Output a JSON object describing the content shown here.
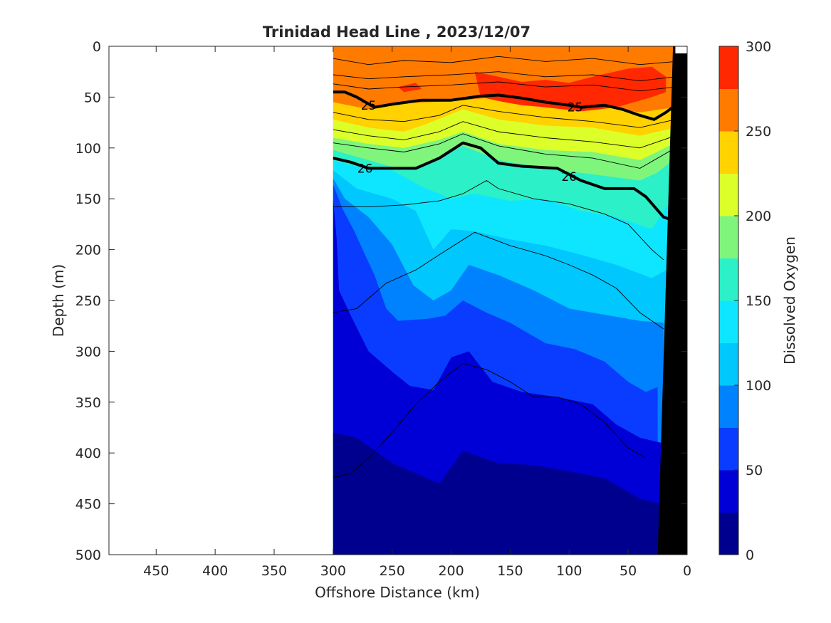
{
  "chart_data": {
    "type": "heatmap",
    "title": "Trinidad Head Line , 2023/12/07",
    "xlabel": "Offshore Distance (km)",
    "ylabel": "Depth (m)",
    "colorbar_label": "Dissolved Oxygen",
    "xlim": [
      490,
      0
    ],
    "ylim": [
      0,
      500
    ],
    "x_reversed": true,
    "y_reversed": true,
    "xticks": [
      "450",
      "400",
      "350",
      "300",
      "250",
      "200",
      "150",
      "100",
      "50",
      "0"
    ],
    "xtick_values": [
      450,
      400,
      350,
      300,
      250,
      200,
      150,
      100,
      50,
      0
    ],
    "yticks": [
      "0",
      "50",
      "100",
      "150",
      "200",
      "250",
      "300",
      "350",
      "400",
      "450",
      "500"
    ],
    "ytick_values": [
      0,
      50,
      100,
      150,
      200,
      250,
      300,
      350,
      400,
      450,
      500
    ],
    "colorbar_ticks": [
      "0",
      "50",
      "100",
      "150",
      "200",
      "250",
      "300"
    ],
    "colorbar_tick_values": [
      0,
      50,
      100,
      150,
      200,
      250,
      300
    ],
    "colorbar_levels": [
      0,
      25,
      50,
      75,
      100,
      125,
      150,
      175,
      200,
      225,
      250,
      275,
      300
    ],
    "colormap": [
      "#00008f",
      "#0000d6",
      "#0a3cff",
      "#0082ff",
      "#00c8ff",
      "#0ee6ff",
      "#2bf0c8",
      "#7ff57c",
      "#dcff2a",
      "#ffd200",
      "#ff7b00",
      "#ff2800",
      "#d50000"
    ],
    "data_extent_km": [
      300,
      10
    ],
    "oxygen_layers": [
      {
        "level": 250,
        "boundary": [
          [
            300,
            55
          ],
          [
            270,
            62
          ],
          [
            240,
            56
          ],
          [
            200,
            54
          ],
          [
            160,
            50
          ],
          [
            120,
            57
          ],
          [
            80,
            58
          ],
          [
            40,
            65
          ],
          [
            10,
            60
          ]
        ]
      },
      {
        "level": 225,
        "boundary": [
          [
            300,
            72
          ],
          [
            270,
            80
          ],
          [
            240,
            84
          ],
          [
            220,
            76
          ],
          [
            190,
            62
          ],
          [
            160,
            72
          ],
          [
            120,
            78
          ],
          [
            80,
            80
          ],
          [
            40,
            88
          ],
          [
            10,
            80
          ]
        ]
      },
      {
        "level": 200,
        "boundary": [
          [
            300,
            90
          ],
          [
            270,
            96
          ],
          [
            240,
            100
          ],
          [
            210,
            92
          ],
          [
            190,
            84
          ],
          [
            160,
            96
          ],
          [
            120,
            102
          ],
          [
            80,
            104
          ],
          [
            40,
            112
          ],
          [
            10,
            95
          ]
        ]
      },
      {
        "level": 175,
        "boundary": [
          [
            300,
            102
          ],
          [
            270,
            112
          ],
          [
            240,
            122
          ],
          [
            210,
            110
          ],
          [
            190,
            98
          ],
          [
            160,
            112
          ],
          [
            120,
            120
          ],
          [
            80,
            126
          ],
          [
            40,
            132
          ],
          [
            25,
            124
          ],
          [
            10,
            110
          ]
        ]
      },
      {
        "level": 150,
        "boundary": [
          [
            300,
            112
          ],
          [
            280,
            118
          ],
          [
            250,
            122
          ],
          [
            225,
            138
          ],
          [
            200,
            150
          ],
          [
            180,
            145
          ],
          [
            150,
            152
          ],
          [
            120,
            150
          ],
          [
            90,
            162
          ],
          [
            60,
            168
          ],
          [
            30,
            180
          ],
          [
            10,
            145
          ]
        ]
      },
      {
        "level": 125,
        "boundary": [
          [
            300,
            122
          ],
          [
            280,
            140
          ],
          [
            250,
            150
          ],
          [
            230,
            162
          ],
          [
            215,
            200
          ],
          [
            200,
            180
          ],
          [
            180,
            182
          ],
          [
            150,
            190
          ],
          [
            120,
            196
          ],
          [
            90,
            205
          ],
          [
            60,
            215
          ],
          [
            30,
            228
          ],
          [
            10,
            215
          ]
        ]
      },
      {
        "level": 100,
        "boundary": [
          [
            300,
            130
          ],
          [
            290,
            150
          ],
          [
            270,
            168
          ],
          [
            250,
            195
          ],
          [
            232,
            235
          ],
          [
            215,
            250
          ],
          [
            200,
            240
          ],
          [
            185,
            215
          ],
          [
            160,
            225
          ],
          [
            130,
            240
          ],
          [
            100,
            258
          ],
          [
            70,
            264
          ],
          [
            40,
            270
          ],
          [
            20,
            272
          ]
        ]
      },
      {
        "level": 75,
        "boundary": [
          [
            300,
            136
          ],
          [
            292,
            160
          ],
          [
            282,
            182
          ],
          [
            275,
            200
          ],
          [
            265,
            225
          ],
          [
            255,
            258
          ],
          [
            245,
            270
          ],
          [
            220,
            268
          ],
          [
            205,
            265
          ],
          [
            190,
            250
          ],
          [
            170,
            262
          ],
          [
            150,
            272
          ],
          [
            120,
            292
          ],
          [
            95,
            298
          ],
          [
            70,
            310
          ],
          [
            50,
            330
          ],
          [
            35,
            340
          ],
          [
            25,
            335
          ]
        ]
      },
      {
        "level": 50,
        "boundary": [
          [
            300,
            150
          ],
          [
            297,
            190
          ],
          [
            295,
            240
          ],
          [
            285,
            265
          ],
          [
            270,
            300
          ],
          [
            250,
            320
          ],
          [
            235,
            334
          ],
          [
            215,
            338
          ],
          [
            200,
            306
          ],
          [
            185,
            300
          ],
          [
            165,
            330
          ],
          [
            140,
            340
          ],
          [
            110,
            345
          ],
          [
            80,
            352
          ],
          [
            60,
            372
          ],
          [
            40,
            385
          ],
          [
            22,
            390
          ]
        ]
      },
      {
        "level": 25,
        "boundary": [
          [
            300,
            380
          ],
          [
            280,
            385
          ],
          [
            250,
            410
          ],
          [
            230,
            420
          ],
          [
            210,
            430
          ],
          [
            190,
            398
          ],
          [
            160,
            410
          ],
          [
            130,
            412
          ],
          [
            100,
            418
          ],
          [
            70,
            425
          ],
          [
            40,
            445
          ],
          [
            22,
            450
          ]
        ]
      }
    ],
    "red_patches": [
      {
        "level": 275,
        "outline": [
          [
            180,
            25
          ],
          [
            160,
            30
          ],
          [
            140,
            35
          ],
          [
            120,
            33
          ],
          [
            100,
            36
          ],
          [
            80,
            30
          ],
          [
            50,
            22
          ],
          [
            30,
            20
          ],
          [
            18,
            30
          ],
          [
            18,
            45
          ],
          [
            30,
            50
          ],
          [
            60,
            60
          ],
          [
            90,
            64
          ],
          [
            120,
            60
          ],
          [
            140,
            58
          ],
          [
            155,
            55
          ],
          [
            175,
            50
          ]
        ]
      },
      {
        "level": 275,
        "outline": [
          [
            245,
            40
          ],
          [
            230,
            36
          ],
          [
            225,
            42
          ],
          [
            240,
            45
          ]
        ]
      }
    ],
    "isopycnals": [
      {
        "value": 25,
        "points": [
          [
            300,
            45
          ],
          [
            290,
            45
          ],
          [
            280,
            50
          ],
          [
            265,
            60
          ],
          [
            250,
            57
          ],
          [
            225,
            53
          ],
          [
            200,
            53
          ],
          [
            175,
            49
          ],
          [
            160,
            48
          ],
          [
            140,
            51
          ],
          [
            120,
            55
          ],
          [
            100,
            58
          ],
          [
            90,
            60
          ],
          [
            70,
            58
          ],
          [
            55,
            62
          ],
          [
            40,
            68
          ],
          [
            28,
            72
          ],
          [
            18,
            65
          ],
          [
            10,
            58
          ]
        ],
        "labels": [
          [
            270,
            58
          ],
          [
            95,
            60
          ]
        ]
      },
      {
        "value": 26,
        "points": [
          [
            300,
            110
          ],
          [
            285,
            114
          ],
          [
            270,
            120
          ],
          [
            250,
            120
          ],
          [
            230,
            120
          ],
          [
            210,
            110
          ],
          [
            190,
            95
          ],
          [
            175,
            100
          ],
          [
            160,
            115
          ],
          [
            140,
            118
          ],
          [
            110,
            120
          ],
          [
            90,
            132
          ],
          [
            70,
            140
          ],
          [
            45,
            140
          ],
          [
            35,
            148
          ],
          [
            20,
            168
          ],
          [
            10,
            172
          ]
        ],
        "labels": [
          [
            273,
            120
          ],
          [
            100,
            128
          ]
        ]
      }
    ],
    "thin_contours": [
      [
        [
          300,
          12
        ],
        [
          270,
          18
        ],
        [
          240,
          14
        ],
        [
          200,
          16
        ],
        [
          160,
          10
        ],
        [
          120,
          15
        ],
        [
          80,
          12
        ],
        [
          40,
          18
        ],
        [
          10,
          15
        ]
      ],
      [
        [
          300,
          28
        ],
        [
          270,
          32
        ],
        [
          240,
          30
        ],
        [
          200,
          28
        ],
        [
          160,
          25
        ],
        [
          120,
          30
        ],
        [
          80,
          28
        ],
        [
          40,
          34
        ],
        [
          10,
          30
        ]
      ],
      [
        [
          300,
          37
        ],
        [
          270,
          42
        ],
        [
          240,
          40
        ],
        [
          200,
          38
        ],
        [
          160,
          35
        ],
        [
          120,
          40
        ],
        [
          80,
          38
        ],
        [
          40,
          44
        ],
        [
          10,
          40
        ]
      ],
      [
        [
          300,
          65
        ],
        [
          270,
          72
        ],
        [
          240,
          74
        ],
        [
          210,
          68
        ],
        [
          190,
          58
        ],
        [
          160,
          64
        ],
        [
          120,
          70
        ],
        [
          80,
          74
        ],
        [
          40,
          80
        ],
        [
          10,
          72
        ]
      ],
      [
        [
          300,
          82
        ],
        [
          270,
          88
        ],
        [
          240,
          92
        ],
        [
          210,
          84
        ],
        [
          190,
          74
        ],
        [
          160,
          84
        ],
        [
          120,
          90
        ],
        [
          80,
          94
        ],
        [
          40,
          100
        ],
        [
          10,
          88
        ]
      ],
      [
        [
          300,
          95
        ],
        [
          270,
          100
        ],
        [
          240,
          104
        ],
        [
          210,
          96
        ],
        [
          190,
          86
        ],
        [
          160,
          98
        ],
        [
          120,
          106
        ],
        [
          80,
          110
        ],
        [
          40,
          120
        ],
        [
          10,
          100
        ]
      ],
      [
        [
          300,
          158
        ],
        [
          270,
          158
        ],
        [
          240,
          156
        ],
        [
          210,
          152
        ],
        [
          190,
          145
        ],
        [
          170,
          132
        ],
        [
          160,
          140
        ],
        [
          130,
          150
        ],
        [
          100,
          155
        ],
        [
          70,
          165
        ],
        [
          50,
          175
        ],
        [
          30,
          200
        ],
        [
          20,
          210
        ]
      ],
      [
        [
          300,
          262
        ],
        [
          280,
          258
        ],
        [
          255,
          233
        ],
        [
          230,
          220
        ],
        [
          210,
          205
        ],
        [
          180,
          183
        ],
        [
          150,
          196
        ],
        [
          120,
          206
        ],
        [
          100,
          215
        ],
        [
          80,
          225
        ],
        [
          60,
          238
        ],
        [
          40,
          262
        ],
        [
          20,
          278
        ]
      ],
      [
        [
          300,
          424
        ],
        [
          285,
          420
        ],
        [
          270,
          405
        ],
        [
          250,
          380
        ],
        [
          230,
          352
        ],
        [
          210,
          330
        ],
        [
          190,
          312
        ],
        [
          170,
          318
        ],
        [
          150,
          330
        ],
        [
          130,
          345
        ],
        [
          110,
          345
        ],
        [
          90,
          352
        ],
        [
          70,
          370
        ],
        [
          50,
          395
        ],
        [
          35,
          405
        ]
      ]
    ],
    "ocean_floor_fill": [
      [
        25,
        500
      ],
      [
        12,
        0
      ],
      [
        0,
        0
      ],
      [
        0,
        500
      ]
    ],
    "deep_blob": [
      [
        200,
        500
      ],
      [
        198,
        490
      ],
      [
        193,
        480
      ],
      [
        187,
        484
      ],
      [
        185,
        500
      ]
    ]
  }
}
